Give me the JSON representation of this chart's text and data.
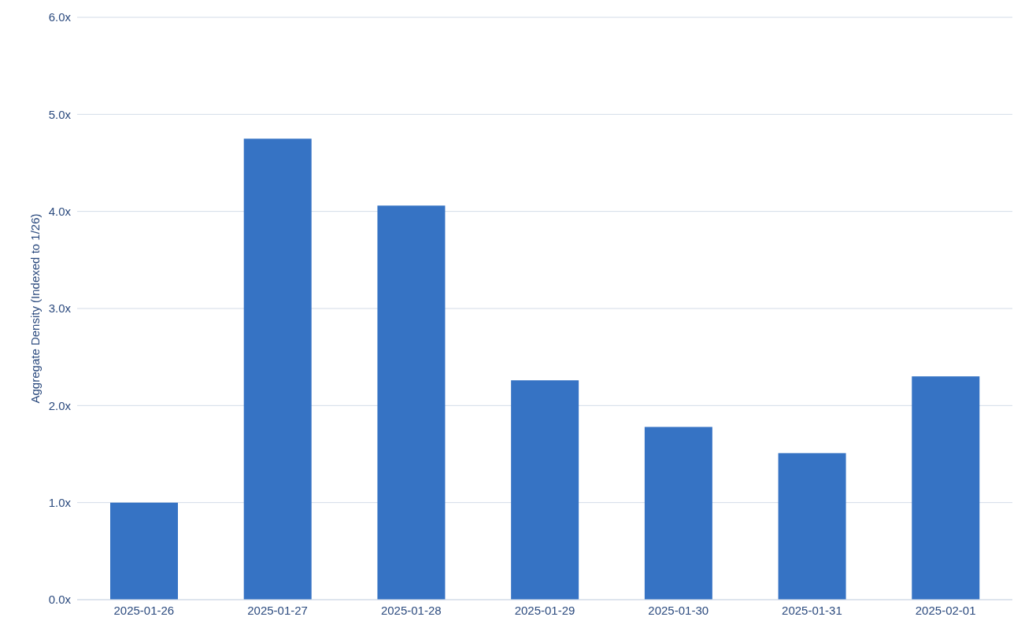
{
  "chart_data": {
    "type": "bar",
    "ylabel": "Aggregate Density (Indexed to 1/26)",
    "categories": [
      "2025-01-26",
      "2025-01-27",
      "2025-01-28",
      "2025-01-29",
      "2025-01-30",
      "2025-01-31",
      "2025-02-01"
    ],
    "values": [
      1.0,
      4.75,
      4.06,
      2.26,
      1.78,
      1.51,
      2.3
    ],
    "color": "#3673c4",
    "ylim": [
      0,
      6
    ],
    "yticks": [
      {
        "value": 0,
        "label": "0.0x"
      },
      {
        "value": 1,
        "label": "1.0x"
      },
      {
        "value": 2,
        "label": "2.0x"
      },
      {
        "value": 3,
        "label": "3.0x"
      },
      {
        "value": 4,
        "label": "4.0x"
      },
      {
        "value": 5,
        "label": "5.0x"
      },
      {
        "value": 6,
        "label": "6.0x"
      }
    ],
    "grid": "y"
  }
}
